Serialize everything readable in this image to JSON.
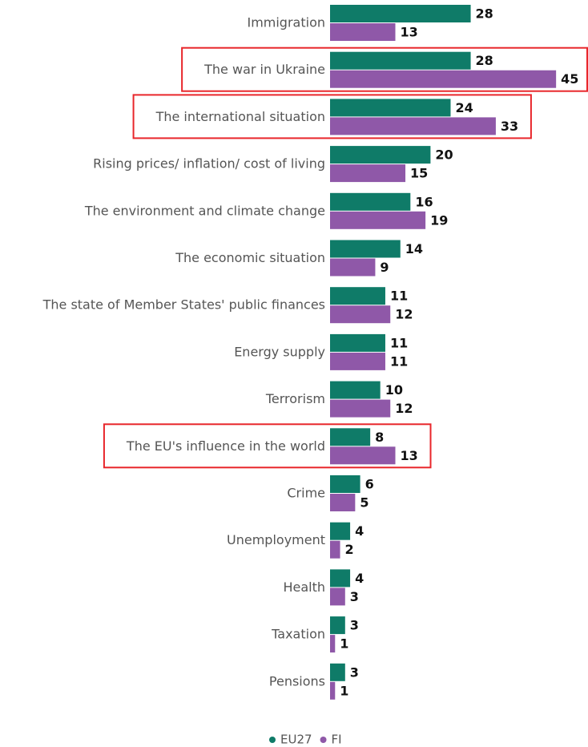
{
  "chart_data": {
    "type": "bar",
    "orientation": "horizontal",
    "categories": [
      "Immigration",
      "The war in Ukraine",
      "The international situation",
      "Rising prices/ inflation/ cost of living",
      "The environment and climate change",
      "The economic situation",
      "The state of Member States' public finances",
      "Energy supply",
      "Terrorism",
      "The EU's influence in the world",
      "Crime",
      "Unemployment",
      "Health",
      "Taxation",
      "Pensions"
    ],
    "series": [
      {
        "name": "EU27",
        "color": "#0f7b68",
        "values": [
          28,
          28,
          24,
          20,
          16,
          14,
          11,
          11,
          10,
          8,
          6,
          4,
          4,
          3,
          3
        ]
      },
      {
        "name": "FI",
        "color": "#8f58a8",
        "values": [
          13,
          45,
          33,
          15,
          19,
          9,
          12,
          11,
          12,
          13,
          5,
          2,
          3,
          1,
          1
        ]
      }
    ],
    "highlight": [
      1,
      2,
      9
    ],
    "legend": "bottom"
  }
}
